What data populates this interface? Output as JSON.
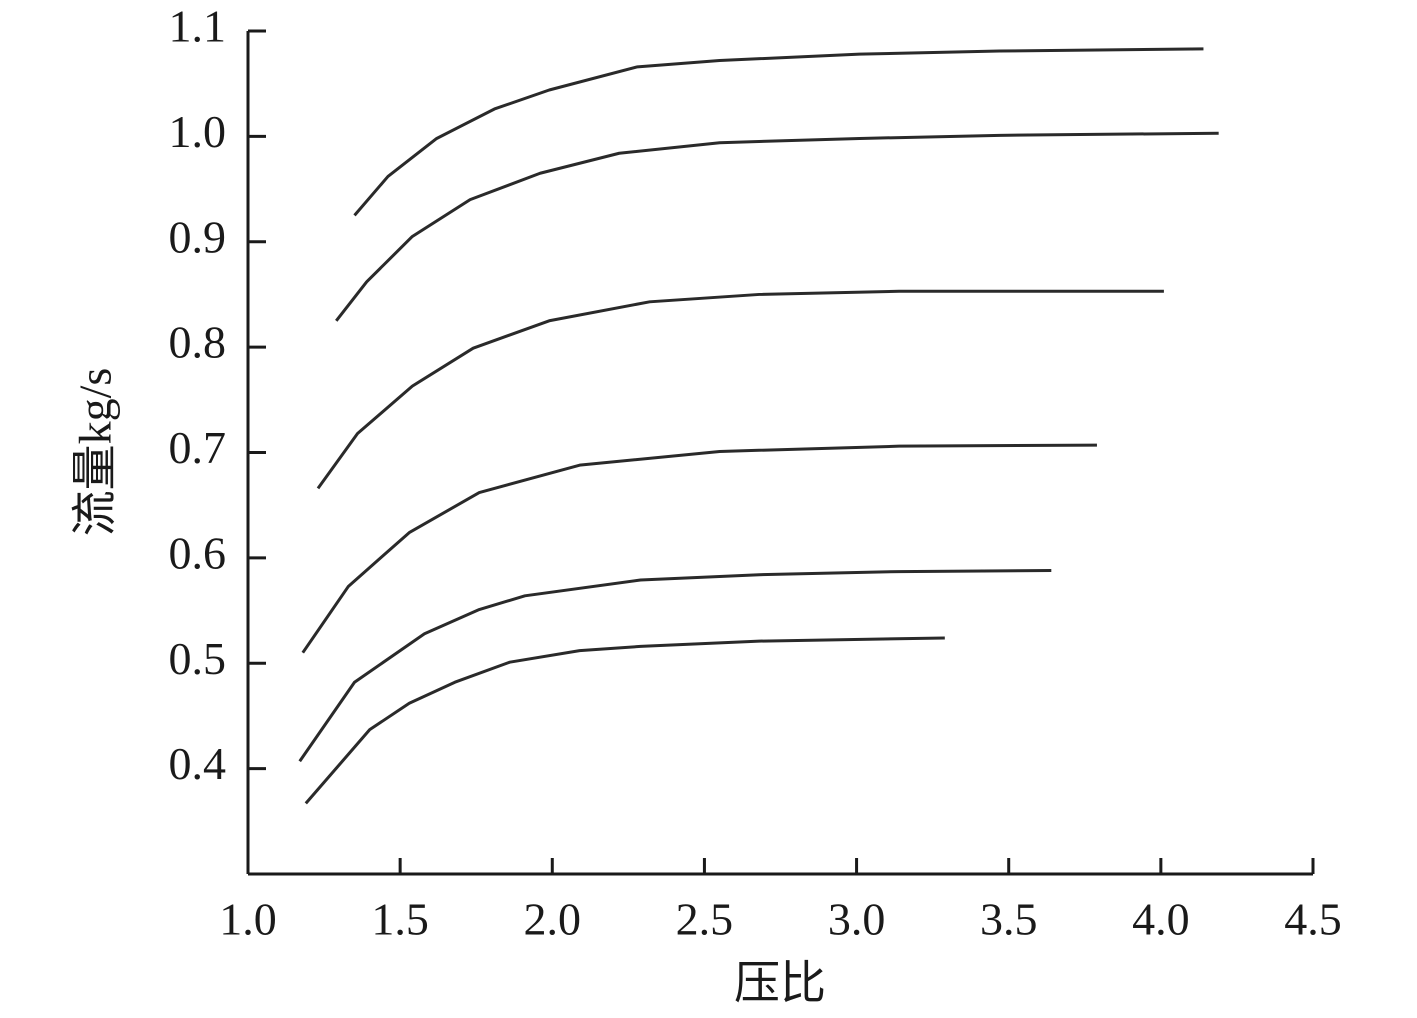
{
  "chart_data": {
    "type": "line",
    "xlabel": "压比",
    "ylabel": "流量kg/s",
    "xlim": [
      1.0,
      4.5
    ],
    "xticks": [
      {
        "value": 1.0,
        "label": "1.0"
      },
      1.5,
      {
        "value": 2.0,
        "label": "2.0"
      },
      2.5,
      {
        "value": 3.0,
        "label": "3.0"
      },
      3.5,
      {
        "value": 4.0,
        "label": "4.0"
      },
      4.5
    ],
    "ylim": [
      0.3,
      1.1
    ],
    "yticks": [
      0.4,
      0.5,
      0.6,
      0.7,
      0.8,
      0.9,
      {
        "value": 1.0,
        "label": "1.0"
      },
      1.1
    ],
    "grid": false,
    "series": [
      {
        "color": "#2a2a2a",
        "x": [
          1.35,
          1.46,
          1.62,
          1.81,
          1.99,
          2.28,
          2.55,
          3.01,
          3.47,
          4.14
        ],
        "values": [
          0.925,
          0.962,
          0.998,
          1.026,
          1.044,
          1.066,
          1.072,
          1.078,
          1.081,
          1.083
        ]
      },
      {
        "color": "#2a2a2a",
        "x": [
          1.29,
          1.39,
          1.54,
          1.73,
          1.96,
          2.22,
          2.55,
          3.01,
          3.47,
          4.19
        ],
        "values": [
          0.825,
          0.862,
          0.905,
          0.94,
          0.965,
          0.984,
          0.994,
          0.998,
          1.001,
          1.003
        ]
      },
      {
        "color": "#2a2a2a",
        "x": [
          1.23,
          1.36,
          1.54,
          1.74,
          1.99,
          2.32,
          2.68,
          3.14,
          4.01
        ],
        "values": [
          0.666,
          0.718,
          0.763,
          0.799,
          0.825,
          0.843,
          0.85,
          0.853,
          0.853
        ]
      },
      {
        "color": "#2a2a2a",
        "x": [
          1.18,
          1.33,
          1.53,
          1.76,
          2.09,
          2.55,
          3.14,
          3.79
        ],
        "values": [
          0.51,
          0.573,
          0.624,
          0.662,
          0.688,
          0.701,
          0.706,
          0.707
        ]
      },
      {
        "color": "#2a2a2a",
        "x": [
          1.17,
          1.35,
          1.58,
          1.76,
          1.91,
          2.29,
          2.68,
          3.14,
          3.64
        ],
        "values": [
          0.407,
          0.482,
          0.528,
          0.551,
          0.564,
          0.579,
          0.584,
          0.587,
          0.588
        ]
      },
      {
        "color": "#2a2a2a",
        "x": [
          1.19,
          1.4,
          1.53,
          1.68,
          1.86,
          2.09,
          2.29,
          2.68,
          3.29
        ],
        "values": [
          0.367,
          0.437,
          0.462,
          0.482,
          0.501,
          0.512,
          0.516,
          0.521,
          0.524
        ]
      }
    ]
  }
}
